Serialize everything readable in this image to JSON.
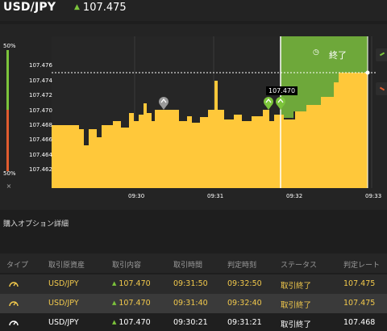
{
  "header": {
    "pair": "USD/JPY",
    "price": "107.475",
    "direction_icon": "up-arrow-icon"
  },
  "chart": {
    "y_ticks": [
      "107.476",
      "107.474",
      "107.472",
      "107.470",
      "107.468",
      "107.466",
      "107.464",
      "107.462"
    ],
    "x_ticks": [
      "09:30",
      "09:31",
      "09:32",
      "09:33"
    ],
    "left_top_label": "50%",
    "left_bottom_label": "50%",
    "close_label": "×",
    "end_label": "終了",
    "price_tag": "107.470",
    "colors": {
      "area": "#ffc83a",
      "green_zone": "#6ea83a",
      "up": "#7cc43b",
      "down": "#e05b2e"
    }
  },
  "details": {
    "title": "購入オプション詳細",
    "columns": [
      "タイプ",
      "取引原資産",
      "取引内容",
      "取引時間",
      "判定時刻",
      "ステータス",
      "判定レート"
    ],
    "rows": [
      {
        "asset": "USD/JPY",
        "content": "107.470",
        "time": "09:31:50",
        "judge_time": "09:32:50",
        "status": "取引終了",
        "rate": "107.475"
      },
      {
        "asset": "USD/JPY",
        "content": "107.470",
        "time": "09:31:40",
        "judge_time": "09:32:40",
        "status": "取引終了",
        "rate": "107.475"
      },
      {
        "asset": "USD/JPY",
        "content": "107.470",
        "time": "09:30:21",
        "judge_time": "09:31:21",
        "status": "取引終了",
        "rate": "107.468"
      }
    ]
  }
}
